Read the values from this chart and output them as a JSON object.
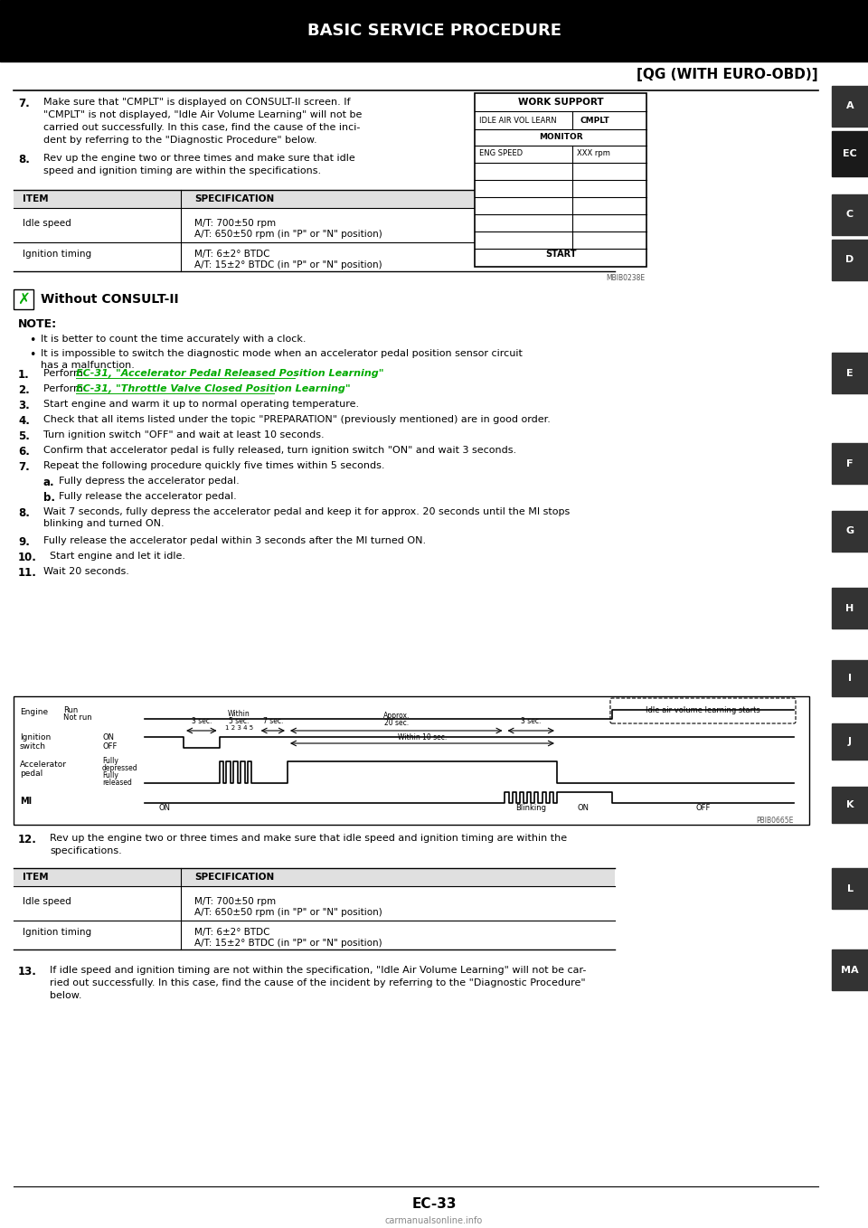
{
  "page_title": "BASIC SERVICE PROCEDURE",
  "header_tag": "[QG (WITH EURO-OBD)]",
  "footer_left": "EC-33",
  "footer_right": "carmanualsonline.info",
  "bg_color": "#ffffff",
  "section7_text": [
    "Make sure that \"CMPLT\" is displayed on CONSULT-II screen. If",
    "\"CMPLT\" is not displayed, \"Idle Air Volume Learning\" will not be",
    "carried out successfully. In this case, find the cause of the inci-",
    "dent by referring to the \"Diagnostic Procedure\" below."
  ],
  "section8_text": [
    "Rev up the engine two or three times and make sure that idle",
    "speed and ignition timing are within the specifications."
  ],
  "table1_rows": [
    [
      "Idle speed",
      "M/T: 700±50 rpm",
      "A/T: 650±50 rpm (in \"P\" or \"N\" position)"
    ],
    [
      "Ignition timing",
      "M/T: 6±2° BTDC",
      "A/T: 15±2° BTDC (in \"P\" or \"N\" position)"
    ]
  ],
  "without_consult_label": "Without CONSULT-II",
  "note_bullets": [
    "It is better to count the time accurately with a clock.",
    "It is impossible to switch the diagnostic mode when an accelerator pedal position sensor circuit",
    "has a malfunction."
  ],
  "step1_pre": "Perform ",
  "step1_link": "EC-31, \"Accelerator Pedal Released Position Learning\"",
  "step1_post": ".",
  "step2_pre": "Perform ",
  "step2_link": "EC-31, \"Throttle Valve Closed Position Learning\"",
  "step2_post": ".",
  "steps_plain": [
    [
      "3.",
      "Start engine and warm it up to normal operating temperature."
    ],
    [
      "4.",
      "Check that all items listed under the topic \"PREPARATION\" (previously mentioned) are in good order."
    ],
    [
      "5.",
      "Turn ignition switch \"OFF\" and wait at least 10 seconds."
    ],
    [
      "6.",
      "Confirm that accelerator pedal is fully released, turn ignition switch \"ON\" and wait 3 seconds."
    ],
    [
      "7.",
      "Repeat the following procedure quickly five times within 5 seconds."
    ],
    [
      "a.",
      "Fully depress the accelerator pedal."
    ],
    [
      "b.",
      "Fully release the accelerator pedal."
    ],
    [
      "8.",
      "Wait 7 seconds, fully depress the accelerator pedal and keep it for approx. 20 seconds until the MI stops\nblinking and turned ON."
    ],
    [
      "9.",
      "Fully release the accelerator pedal within 3 seconds after the MI turned ON."
    ],
    [
      "10.",
      "Start engine and let it idle."
    ],
    [
      "11.",
      "Wait 20 seconds."
    ]
  ],
  "section12_text": [
    "Rev up the engine two or three times and make sure that idle speed and ignition timing are within the",
    "specifications."
  ],
  "table2_rows": [
    [
      "Idle speed",
      "M/T: 700±50 rpm",
      "A/T: 650±50 rpm (in \"P\" or \"N\" position)"
    ],
    [
      "Ignition timing",
      "M/T: 6±2° BTDC",
      "A/T: 15±2° BTDC (in \"P\" or \"N\" position)"
    ]
  ],
  "section13_text": [
    "If idle speed and ignition timing are not within the specification, \"Idle Air Volume Learning\" will not be car-",
    "ried out successfully. In this case, find the cause of the incident by referring to the \"Diagnostic Procedure\"",
    "below."
  ],
  "diagram_code": "PBIB0665E",
  "work_support_code": "MBIB0238E",
  "link_color": "#00aa00",
  "tab_entries": [
    [
      "A",
      95,
      140,
      false
    ],
    [
      "EC",
      145,
      195,
      true
    ],
    [
      "C",
      215,
      260,
      false
    ],
    [
      "D",
      265,
      310,
      false
    ],
    [
      "E",
      390,
      435,
      false
    ],
    [
      "F",
      490,
      535,
      false
    ],
    [
      "G",
      565,
      610,
      false
    ],
    [
      "H",
      650,
      695,
      false
    ],
    [
      "I",
      730,
      770,
      false
    ],
    [
      "J",
      800,
      840,
      false
    ],
    [
      "K",
      870,
      910,
      false
    ],
    [
      "L",
      960,
      1005,
      false
    ],
    [
      "MA",
      1050,
      1095,
      false
    ]
  ]
}
